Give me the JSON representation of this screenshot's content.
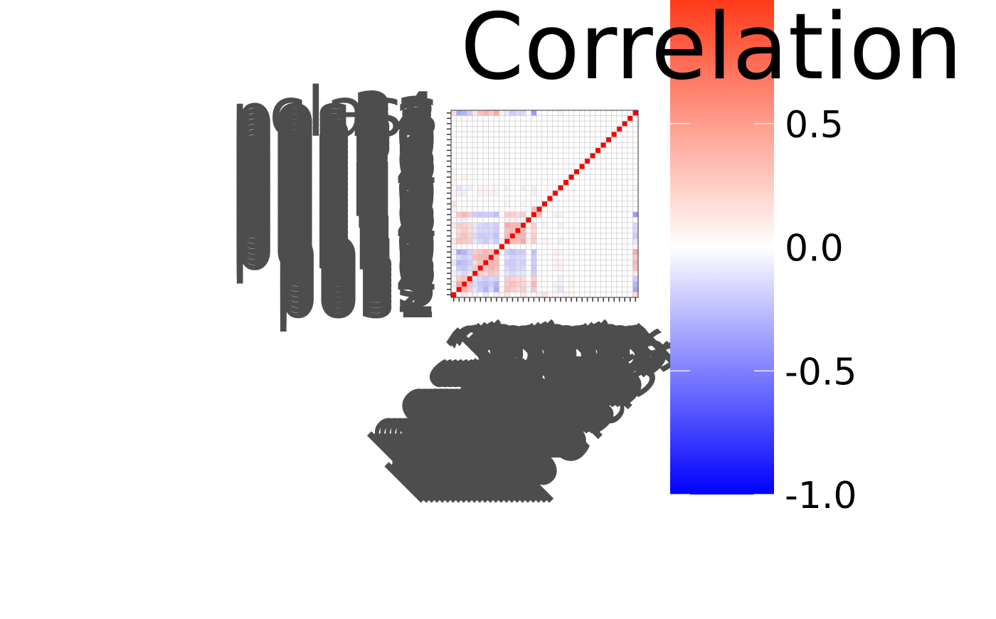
{
  "chart_data": {
    "type": "heatmap",
    "x_labels": [
      "pos1",
      "pos2",
      "pos3",
      "pos4",
      "pos5",
      "pos6",
      "pos7",
      "pos8",
      "pos9",
      "pos10",
      "pos11",
      "pos12",
      "pos13",
      "pos14",
      "pos15",
      "pos16",
      "pos17",
      "pos18",
      "pos19",
      "pos20",
      "pos21",
      "pos22",
      "pos23",
      "pos24",
      "pos25",
      "pos26",
      "pos27",
      "pos28",
      "pos29",
      "pos30",
      "pos31",
      "pos32",
      "pos33",
      "pos34",
      "class"
    ],
    "y_labels": [
      "pos1",
      "pos2",
      "pos3",
      "pos4",
      "pos5",
      "pos6",
      "pos7",
      "pos8",
      "pos9",
      "pos10",
      "pos11",
      "pos12",
      "pos13",
      "pos14",
      "pos15",
      "pos16",
      "pos17",
      "pos18",
      "pos19",
      "pos20",
      "pos21",
      "pos22",
      "pos23",
      "pos24",
      "pos25",
      "pos26",
      "pos27",
      "pos28",
      "pos29",
      "pos30",
      "pos31",
      "pos32",
      "pos33",
      "pos34",
      "class"
    ],
    "matrix": [
      [
        1.0,
        0.02,
        0.08,
        0.03,
        -0.05,
        0.0,
        -0.1,
        0.02,
        -0.05,
        0.05,
        0.1,
        0.0,
        -0.02,
        0.1,
        0.0,
        0.02,
        -0.05,
        0.12,
        0.0,
        0.05,
        0.02,
        0.05,
        0.03,
        0.02,
        0.0,
        0.0,
        0.0,
        0.0,
        0.0,
        0.0,
        0.0,
        0.0,
        0.0,
        0.0,
        0.15
      ],
      [
        0.02,
        1.0,
        0.35,
        0.2,
        -0.1,
        -0.2,
        -0.3,
        -0.15,
        -0.35,
        0.0,
        0.25,
        0.2,
        0.15,
        0.2,
        -0.05,
        0.22,
        0.0,
        0.0,
        0.0,
        -0.05,
        -0.1,
        0.0,
        0.02,
        0.0,
        0.0,
        0.0,
        0.0,
        0.0,
        0.0,
        0.0,
        0.0,
        0.0,
        0.0,
        0.0,
        -0.35
      ],
      [
        0.08,
        0.35,
        1.0,
        0.25,
        -0.15,
        -0.22,
        -0.25,
        -0.2,
        -0.3,
        0.0,
        0.22,
        0.25,
        0.2,
        0.18,
        -0.05,
        0.3,
        0.0,
        0.0,
        0.0,
        -0.05,
        -0.05,
        0.0,
        0.05,
        0.0,
        0.0,
        0.0,
        0.0,
        0.0,
        0.0,
        0.0,
        0.0,
        0.0,
        0.0,
        0.0,
        -0.3
      ],
      [
        0.03,
        0.2,
        0.25,
        1.0,
        -0.1,
        -0.15,
        -0.2,
        -0.15,
        -0.18,
        0.0,
        0.2,
        0.18,
        0.15,
        0.15,
        0.0,
        0.2,
        0.0,
        0.0,
        0.0,
        0.0,
        -0.05,
        0.0,
        0.02,
        0.0,
        0.0,
        0.0,
        0.0,
        0.0,
        0.0,
        0.0,
        0.0,
        0.0,
        0.0,
        0.0,
        -0.2
      ],
      [
        -0.05,
        -0.1,
        -0.15,
        -0.1,
        1.0,
        0.2,
        0.15,
        0.25,
        0.2,
        0.0,
        -0.1,
        -0.15,
        -0.1,
        -0.1,
        0.0,
        -0.2,
        0.0,
        0.0,
        0.0,
        0.0,
        0.02,
        0.0,
        0.0,
        0.0,
        0.0,
        0.0,
        0.0,
        0.0,
        0.0,
        0.0,
        0.0,
        0.0,
        0.0,
        0.0,
        0.1
      ],
      [
        0.0,
        -0.2,
        -0.22,
        -0.15,
        0.2,
        1.0,
        0.25,
        0.3,
        0.25,
        0.0,
        -0.15,
        -0.2,
        -0.15,
        -0.15,
        0.0,
        -0.22,
        0.0,
        0.0,
        0.0,
        0.05,
        0.05,
        0.0,
        0.0,
        0.0,
        0.0,
        0.0,
        0.0,
        0.0,
        0.0,
        0.0,
        0.0,
        0.0,
        0.0,
        0.0,
        0.25
      ],
      [
        -0.1,
        -0.3,
        -0.25,
        -0.2,
        0.15,
        0.25,
        1.0,
        0.3,
        0.3,
        0.0,
        -0.2,
        -0.2,
        -0.15,
        -0.18,
        0.0,
        -0.2,
        0.0,
        0.0,
        0.0,
        0.05,
        0.05,
        0.0,
        0.0,
        0.0,
        0.0,
        0.0,
        0.0,
        0.0,
        0.0,
        0.0,
        0.0,
        0.0,
        0.0,
        0.0,
        0.3
      ],
      [
        0.02,
        -0.15,
        -0.2,
        -0.15,
        0.25,
        0.3,
        0.3,
        1.0,
        0.25,
        0.0,
        -0.12,
        -0.18,
        -0.15,
        -0.15,
        0.0,
        -0.2,
        0.0,
        0.0,
        0.0,
        0.05,
        0.02,
        0.0,
        0.0,
        0.0,
        0.0,
        0.0,
        0.0,
        0.0,
        0.0,
        0.0,
        0.0,
        0.0,
        0.0,
        0.0,
        0.22
      ],
      [
        -0.05,
        -0.35,
        -0.3,
        -0.18,
        0.2,
        0.25,
        0.3,
        0.25,
        1.0,
        0.0,
        -0.2,
        -0.25,
        -0.2,
        -0.2,
        0.0,
        -0.25,
        0.0,
        0.0,
        0.0,
        0.05,
        0.05,
        0.0,
        0.0,
        0.0,
        0.0,
        0.0,
        0.0,
        0.0,
        0.0,
        0.0,
        0.0,
        0.0,
        0.0,
        0.0,
        0.35
      ],
      [
        0.05,
        0.0,
        0.0,
        0.0,
        0.0,
        0.0,
        0.0,
        0.0,
        0.0,
        1.0,
        0.05,
        0.0,
        0.0,
        0.0,
        0.0,
        0.0,
        0.0,
        0.0,
        0.0,
        0.0,
        0.0,
        0.0,
        0.0,
        0.0,
        0.0,
        0.0,
        0.0,
        0.0,
        0.0,
        0.0,
        0.0,
        0.0,
        0.0,
        0.0,
        0.05
      ],
      [
        0.1,
        0.25,
        0.22,
        0.2,
        -0.1,
        -0.15,
        -0.2,
        -0.12,
        -0.2,
        0.05,
        1.0,
        0.3,
        0.25,
        0.35,
        0.05,
        0.2,
        0.0,
        0.05,
        0.0,
        0.0,
        -0.05,
        0.0,
        0.0,
        0.0,
        0.0,
        0.0,
        0.0,
        0.0,
        0.0,
        0.0,
        0.0,
        0.0,
        0.0,
        0.0,
        -0.1
      ],
      [
        0.0,
        0.2,
        0.25,
        0.18,
        -0.15,
        -0.2,
        -0.2,
        -0.18,
        -0.25,
        0.0,
        0.3,
        1.0,
        0.3,
        0.3,
        0.05,
        0.2,
        0.0,
        0.0,
        0.0,
        0.0,
        -0.02,
        0.0,
        0.0,
        0.0,
        0.0,
        0.0,
        0.0,
        0.0,
        0.0,
        0.0,
        0.0,
        0.0,
        0.0,
        0.0,
        -0.2
      ],
      [
        -0.02,
        0.15,
        0.2,
        0.15,
        -0.1,
        -0.15,
        -0.15,
        -0.15,
        -0.2,
        0.0,
        0.25,
        0.3,
        1.0,
        0.3,
        0.05,
        0.15,
        0.0,
        0.0,
        0.0,
        0.0,
        0.0,
        0.0,
        0.0,
        0.0,
        0.0,
        0.0,
        0.0,
        0.0,
        0.0,
        0.0,
        0.0,
        0.0,
        0.0,
        0.0,
        -0.15
      ],
      [
        0.1,
        0.2,
        0.18,
        0.15,
        -0.1,
        -0.15,
        -0.18,
        -0.15,
        -0.2,
        0.0,
        0.35,
        0.3,
        0.3,
        1.0,
        0.05,
        0.2,
        0.0,
        0.05,
        0.0,
        0.0,
        -0.05,
        0.0,
        0.0,
        0.0,
        0.0,
        0.0,
        0.0,
        0.0,
        0.0,
        0.0,
        0.0,
        0.0,
        0.0,
        0.0,
        -0.15
      ],
      [
        0.0,
        -0.05,
        -0.05,
        0.0,
        0.0,
        0.0,
        0.0,
        0.0,
        0.0,
        0.0,
        0.05,
        0.05,
        0.05,
        0.05,
        1.0,
        0.0,
        0.0,
        0.0,
        0.0,
        0.0,
        0.0,
        0.0,
        0.0,
        0.0,
        0.0,
        0.0,
        0.0,
        0.0,
        0.0,
        0.0,
        0.0,
        0.0,
        0.0,
        0.0,
        0.0
      ],
      [
        0.02,
        0.22,
        0.3,
        0.2,
        -0.2,
        -0.22,
        -0.2,
        -0.2,
        -0.25,
        0.0,
        0.2,
        0.2,
        0.15,
        0.2,
        0.0,
        1.0,
        0.25,
        0.0,
        0.0,
        -0.05,
        -0.05,
        0.0,
        0.0,
        0.0,
        0.0,
        0.0,
        0.0,
        0.0,
        0.0,
        0.0,
        0.0,
        0.0,
        0.0,
        0.0,
        -0.4
      ],
      [
        -0.05,
        0.0,
        0.0,
        0.0,
        0.0,
        0.0,
        0.0,
        0.0,
        0.0,
        0.0,
        0.0,
        0.0,
        0.0,
        0.0,
        0.0,
        0.25,
        1.0,
        0.0,
        0.0,
        0.0,
        0.0,
        0.0,
        0.0,
        0.0,
        0.0,
        0.0,
        0.0,
        0.0,
        0.0,
        0.0,
        0.0,
        0.0,
        0.0,
        0.0,
        0.0
      ],
      [
        0.12,
        0.0,
        0.0,
        0.0,
        0.0,
        0.0,
        0.0,
        0.0,
        0.0,
        0.0,
        0.05,
        0.0,
        0.0,
        0.05,
        0.0,
        0.0,
        0.0,
        1.0,
        0.0,
        0.0,
        0.0,
        0.0,
        0.0,
        0.0,
        0.0,
        0.0,
        0.0,
        0.0,
        0.0,
        0.0,
        0.0,
        0.0,
        0.0,
        0.0,
        0.0
      ],
      [
        0.0,
        0.0,
        0.0,
        0.0,
        0.0,
        0.0,
        0.0,
        0.0,
        0.0,
        0.0,
        0.0,
        0.0,
        0.0,
        0.0,
        0.0,
        0.0,
        0.0,
        0.0,
        1.0,
        0.0,
        0.0,
        0.0,
        0.0,
        0.0,
        0.0,
        0.0,
        0.0,
        0.0,
        0.0,
        0.0,
        0.0,
        0.0,
        0.0,
        0.0,
        0.0
      ],
      [
        0.05,
        -0.05,
        -0.05,
        0.0,
        0.0,
        0.05,
        0.05,
        0.05,
        0.05,
        0.0,
        0.0,
        0.0,
        0.0,
        0.0,
        0.0,
        -0.05,
        0.0,
        0.0,
        0.0,
        1.0,
        0.0,
        0.0,
        0.0,
        0.0,
        0.0,
        0.0,
        0.0,
        0.0,
        0.0,
        0.0,
        0.0,
        0.0,
        0.0,
        0.0,
        0.0
      ],
      [
        0.02,
        -0.1,
        -0.05,
        -0.05,
        0.02,
        0.05,
        0.05,
        0.02,
        0.05,
        0.0,
        -0.05,
        -0.02,
        0.0,
        -0.05,
        0.0,
        -0.05,
        0.0,
        0.0,
        0.0,
        0.0,
        1.0,
        0.0,
        0.0,
        0.0,
        0.0,
        0.0,
        0.0,
        0.0,
        0.0,
        0.0,
        0.0,
        0.0,
        0.0,
        0.0,
        0.05
      ],
      [
        0.05,
        0.0,
        0.0,
        0.0,
        0.0,
        0.0,
        0.0,
        0.0,
        0.0,
        0.0,
        0.0,
        0.0,
        0.0,
        0.0,
        0.0,
        0.0,
        0.0,
        0.0,
        0.0,
        0.0,
        0.0,
        1.0,
        0.0,
        0.0,
        0.0,
        0.0,
        0.0,
        0.0,
        0.0,
        0.0,
        0.0,
        0.0,
        0.0,
        0.0,
        0.0
      ],
      [
        0.03,
        0.02,
        0.05,
        0.02,
        0.0,
        0.0,
        0.0,
        0.0,
        0.0,
        0.0,
        0.0,
        0.0,
        0.0,
        0.0,
        0.0,
        0.0,
        0.0,
        0.0,
        0.0,
        0.0,
        0.0,
        0.0,
        1.0,
        0.0,
        0.0,
        0.0,
        0.0,
        0.0,
        0.0,
        0.0,
        0.0,
        0.0,
        0.0,
        0.0,
        0.0
      ],
      [
        0.02,
        0.0,
        0.0,
        0.0,
        0.0,
        0.0,
        0.0,
        0.0,
        0.0,
        0.0,
        0.0,
        0.0,
        0.0,
        0.0,
        0.0,
        0.0,
        0.0,
        0.0,
        0.0,
        0.0,
        0.0,
        0.0,
        0.0,
        1.0,
        0.0,
        0.0,
        0.0,
        0.0,
        0.0,
        0.0,
        0.0,
        0.0,
        0.0,
        0.0,
        0.0
      ],
      [
        0.0,
        0.0,
        0.0,
        0.0,
        0.0,
        0.0,
        0.0,
        0.0,
        0.0,
        0.0,
        0.0,
        0.0,
        0.0,
        0.0,
        0.0,
        0.0,
        0.0,
        0.0,
        0.0,
        0.0,
        0.0,
        0.0,
        0.0,
        0.0,
        1.0,
        0.0,
        0.0,
        0.0,
        0.0,
        0.0,
        0.0,
        0.0,
        0.0,
        0.0,
        0.0
      ],
      [
        0.0,
        0.0,
        0.0,
        0.0,
        0.0,
        0.0,
        0.0,
        0.0,
        0.0,
        0.0,
        0.0,
        0.0,
        0.0,
        0.0,
        0.0,
        0.0,
        0.0,
        0.0,
        0.0,
        0.0,
        0.0,
        0.0,
        0.0,
        0.0,
        0.0,
        1.0,
        0.0,
        0.0,
        0.0,
        0.0,
        0.0,
        0.0,
        0.0,
        0.0,
        0.0
      ],
      [
        0.0,
        0.0,
        0.0,
        0.0,
        0.0,
        0.0,
        0.0,
        0.0,
        0.0,
        0.0,
        0.0,
        0.0,
        0.0,
        0.0,
        0.0,
        0.0,
        0.0,
        0.0,
        0.0,
        0.0,
        0.0,
        0.0,
        0.0,
        0.0,
        0.0,
        0.0,
        1.0,
        0.0,
        0.0,
        0.0,
        0.0,
        0.0,
        0.0,
        0.0,
        0.0
      ],
      [
        0.0,
        0.0,
        0.0,
        0.0,
        0.0,
        0.0,
        0.0,
        0.0,
        0.0,
        0.0,
        0.0,
        0.0,
        0.0,
        0.0,
        0.0,
        0.0,
        0.0,
        0.0,
        0.0,
        0.0,
        0.0,
        0.0,
        0.0,
        0.0,
        0.0,
        0.0,
        0.0,
        1.0,
        0.0,
        0.0,
        0.0,
        0.0,
        0.0,
        0.0,
        0.0
      ],
      [
        0.0,
        0.0,
        0.0,
        0.0,
        0.0,
        0.0,
        0.0,
        0.0,
        0.0,
        0.0,
        0.0,
        0.0,
        0.0,
        0.0,
        0.0,
        0.0,
        0.0,
        0.0,
        0.0,
        0.0,
        0.0,
        0.0,
        0.0,
        0.0,
        0.0,
        0.0,
        0.0,
        0.0,
        1.0,
        0.0,
        0.0,
        0.0,
        0.0,
        0.0,
        0.0
      ],
      [
        0.0,
        0.0,
        0.0,
        0.0,
        0.0,
        0.0,
        0.0,
        0.0,
        0.0,
        0.0,
        0.0,
        0.0,
        0.0,
        0.0,
        0.0,
        0.0,
        0.0,
        0.0,
        0.0,
        0.0,
        0.0,
        0.0,
        0.0,
        0.0,
        0.0,
        0.0,
        0.0,
        0.0,
        0.0,
        1.0,
        0.0,
        0.0,
        0.0,
        0.0,
        0.0
      ],
      [
        0.0,
        0.0,
        0.0,
        0.0,
        0.0,
        0.0,
        0.0,
        0.0,
        0.0,
        0.0,
        0.0,
        0.0,
        0.0,
        0.0,
        0.0,
        0.0,
        0.0,
        0.0,
        0.0,
        0.0,
        0.0,
        0.0,
        0.0,
        0.0,
        0.0,
        0.0,
        0.0,
        0.0,
        0.0,
        0.0,
        1.0,
        0.0,
        0.0,
        0.0,
        0.0
      ],
      [
        0.0,
        0.0,
        0.0,
        0.0,
        0.0,
        0.0,
        0.0,
        0.0,
        0.0,
        0.0,
        0.0,
        0.0,
        0.0,
        0.0,
        0.0,
        0.0,
        0.0,
        0.0,
        0.0,
        0.0,
        0.0,
        0.0,
        0.0,
        0.0,
        0.0,
        0.0,
        0.0,
        0.0,
        0.0,
        0.0,
        0.0,
        1.0,
        0.0,
        0.0,
        0.0
      ],
      [
        0.0,
        0.0,
        0.0,
        0.0,
        0.0,
        0.0,
        0.0,
        0.0,
        0.0,
        0.0,
        0.0,
        0.0,
        0.0,
        0.0,
        0.0,
        0.0,
        0.0,
        0.0,
        0.0,
        0.0,
        0.0,
        0.0,
        0.0,
        0.0,
        0.0,
        0.0,
        0.0,
        0.0,
        0.0,
        0.0,
        0.0,
        0.0,
        1.0,
        0.0,
        0.0
      ],
      [
        0.0,
        0.0,
        0.0,
        0.0,
        0.0,
        0.0,
        0.0,
        0.0,
        0.0,
        0.0,
        0.0,
        0.0,
        0.0,
        0.0,
        0.0,
        0.0,
        0.0,
        0.0,
        0.0,
        0.0,
        0.0,
        0.0,
        0.0,
        0.0,
        0.0,
        0.0,
        0.0,
        0.0,
        0.0,
        0.0,
        0.0,
        0.0,
        0.0,
        1.0,
        0.0
      ],
      [
        0.15,
        -0.35,
        -0.3,
        -0.2,
        0.1,
        0.25,
        0.3,
        0.22,
        0.35,
        0.05,
        -0.1,
        -0.2,
        -0.15,
        -0.15,
        0.0,
        -0.4,
        0.0,
        0.0,
        0.0,
        0.0,
        0.05,
        0.0,
        0.0,
        0.0,
        0.0,
        0.0,
        0.0,
        0.0,
        0.0,
        0.0,
        0.0,
        0.0,
        0.0,
        0.0,
        1.0
      ]
    ],
    "colorscale": {
      "low": "#0000ff",
      "mid": "#ffffff",
      "high": "#ff0000",
      "range": [
        -1.0,
        1.0
      ]
    },
    "legend": {
      "title": "Correlation",
      "ticks": [
        0.5,
        0.0,
        -0.5,
        -1.0
      ],
      "tick_labels": [
        "0.5",
        "0.0",
        "-0.5",
        "-1.0"
      ],
      "placement": "right"
    },
    "grid_color": "#c8c8c8",
    "label_color": "#4d4d4d"
  }
}
